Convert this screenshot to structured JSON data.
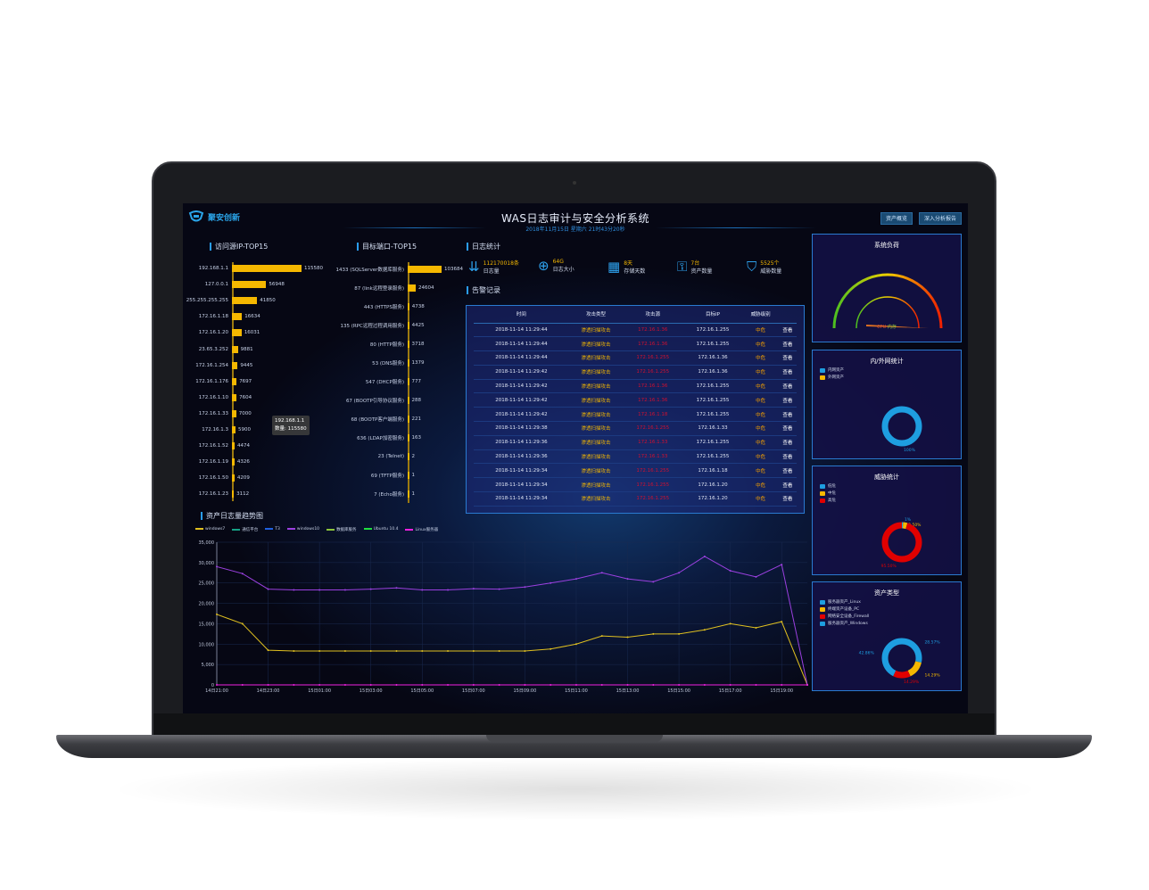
{
  "header": {
    "logo_text": "聚安创新",
    "title": "WAS日志审计与安全分析系统",
    "subtitle": "2018年11月15日 星期六 21时43分20秒",
    "buttons": [
      "资产概览",
      "深入分析报告"
    ]
  },
  "src_ip": {
    "title": "访问源IP-TOP15",
    "items": [
      {
        "label": "192.168.1.1",
        "value": 115580
      },
      {
        "label": "127.0.0.1",
        "value": 56948
      },
      {
        "label": "255.255.255.255",
        "value": 41850
      },
      {
        "label": "172.16.1.18",
        "value": 16634
      },
      {
        "label": "172.16.1.20",
        "value": 16031
      },
      {
        "label": "23.65.3.252",
        "value": 9881
      },
      {
        "label": "172.16.1.254",
        "value": 9445
      },
      {
        "label": "172.16.1.176",
        "value": 7697
      },
      {
        "label": "172.16.1.10",
        "value": 7604
      },
      {
        "label": "172.16.1.33",
        "value": 7000
      },
      {
        "label": "172.16.1.3",
        "value": 5900
      },
      {
        "label": "172.16.1.52",
        "value": 4474
      },
      {
        "label": "172.16.1.19",
        "value": 4326
      },
      {
        "label": "172.16.1.50",
        "value": 4209
      },
      {
        "label": "172.16.1.23",
        "value": 3112
      }
    ],
    "tooltip": {
      "line1": "192.168.1.1",
      "line2": "数量: 115580"
    }
  },
  "dst_port": {
    "title": "目标端口-TOP15",
    "items": [
      {
        "label": "1433 (SQLServer数据库服务)",
        "value": 103684
      },
      {
        "label": "87 (link远程登录服务)",
        "value": 24604
      },
      {
        "label": "443 (HTTPS服务)",
        "value": 4738
      },
      {
        "label": "135 (RPC远程过程调用服务)",
        "value": 4425
      },
      {
        "label": "80 (HTTP服务)",
        "value": 3718
      },
      {
        "label": "53 (DNS服务)",
        "value": 1379
      },
      {
        "label": "547 (DHCP服务)",
        "value": 777
      },
      {
        "label": "67 (BOOTP引导协议服务)",
        "value": 288
      },
      {
        "label": "68 (BOOTP客户端服务)",
        "value": 221
      },
      {
        "label": "636 (LDAP加密服务)",
        "value": 163
      },
      {
        "label": "23 (Telnet)",
        "value": 2
      },
      {
        "label": "69 (TFTP服务)",
        "value": 1
      },
      {
        "label": "7 (Echo服务)",
        "value": 1
      }
    ]
  },
  "log_stats": {
    "title": "日志统计",
    "items": [
      {
        "icon": "bar-sort-icon",
        "value": "112170018条",
        "label": "日志量"
      },
      {
        "icon": "zoom-search-icon",
        "value": "64G",
        "label": "日志大小"
      },
      {
        "icon": "calendar-icon",
        "value": "8天",
        "label": "存储天数"
      },
      {
        "icon": "lock-icon",
        "value": "7台",
        "label": "资产数量"
      },
      {
        "icon": "shield-icon",
        "value": "5525个",
        "label": "威胁数量"
      }
    ]
  },
  "alerts": {
    "title": "告警记录",
    "columns": [
      "时间",
      "攻击类型",
      "攻击源",
      "目标IP",
      "威胁级别",
      ""
    ],
    "rows": [
      [
        "2018-11-14 11:29:44",
        "渗透扫描攻击",
        "172.16.1.36",
        "172.16.1.255",
        "中危",
        "查看"
      ],
      [
        "2018-11-14 11:29:44",
        "渗透扫描攻击",
        "172.16.1.36",
        "172.16.1.255",
        "中危",
        "查看"
      ],
      [
        "2018-11-14 11:29:44",
        "渗透扫描攻击",
        "172.16.1.255",
        "172.16.1.36",
        "中危",
        "查看"
      ],
      [
        "2018-11-14 11:29:42",
        "渗透扫描攻击",
        "172.16.1.255",
        "172.16.1.36",
        "中危",
        "查看"
      ],
      [
        "2018-11-14 11:29:42",
        "渗透扫描攻击",
        "172.16.1.36",
        "172.16.1.255",
        "中危",
        "查看"
      ],
      [
        "2018-11-14 11:29:42",
        "渗透扫描攻击",
        "172.16.1.36",
        "172.16.1.255",
        "中危",
        "查看"
      ],
      [
        "2018-11-14 11:29:42",
        "渗透扫描攻击",
        "172.16.1.18",
        "172.16.1.255",
        "中危",
        "查看"
      ],
      [
        "2018-11-14 11:29:38",
        "渗透扫描攻击",
        "172.16.1.255",
        "172.16.1.33",
        "中危",
        "查看"
      ],
      [
        "2018-11-14 11:29:36",
        "渗透扫描攻击",
        "172.16.1.33",
        "172.16.1.255",
        "中危",
        "查看"
      ],
      [
        "2018-11-14 11:29:36",
        "渗透扫描攻击",
        "172.16.1.33",
        "172.16.1.255",
        "中危",
        "查看"
      ],
      [
        "2018-11-14 11:29:34",
        "渗透扫描攻击",
        "172.16.1.255",
        "172.16.1.18",
        "中危",
        "查看"
      ],
      [
        "2018-11-14 11:29:34",
        "渗透扫描攻击",
        "172.16.1.255",
        "172.16.1.20",
        "中危",
        "查看"
      ],
      [
        "2018-11-14 11:29:34",
        "渗透扫描攻击",
        "172.16.1.255",
        "172.16.1.20",
        "中危",
        "查看"
      ]
    ]
  },
  "chart_data": {
    "type": "line",
    "title": "资产日志量趋势图",
    "x_ticks": [
      "14日21:00",
      "14日23:00",
      "15日01:00",
      "15日03:00",
      "15日05:00",
      "15日07:00",
      "15日09:00",
      "15日11:00",
      "15日13:00",
      "15日15:00",
      "15日17:00",
      "15日19:00"
    ],
    "y_ticks": [
      "0",
      "5,000",
      "10,000",
      "15,000",
      "20,000",
      "25,000",
      "30,000",
      "35,000"
    ],
    "ylim": [
      0,
      35000
    ],
    "grid": true,
    "legend": "top-left",
    "series": [
      {
        "name": "windows7",
        "color": "#e0c020",
        "values": [
          17300,
          15000,
          8500,
          8300,
          8300,
          8300,
          8300,
          8300,
          8300,
          8300,
          8300,
          8300,
          8300,
          8800,
          10000,
          12000,
          11700,
          12500,
          12500,
          13500,
          15000,
          14000,
          15500,
          0
        ]
      },
      {
        "name": "通信平台",
        "color": "#16a085",
        "values": []
      },
      {
        "name": "T3",
        "color": "#2060e0",
        "values": []
      },
      {
        "name": "windows10",
        "color": "#9b40e0",
        "values": [
          29000,
          27300,
          23500,
          23300,
          23300,
          23300,
          23500,
          23800,
          23300,
          23300,
          23600,
          23500,
          24000,
          25000,
          26000,
          27500,
          26000,
          25300,
          27500,
          31500,
          28000,
          26500,
          29500,
          0
        ]
      },
      {
        "name": "数据库服务",
        "color": "#8cc43c",
        "values": []
      },
      {
        "name": "Ubuntu 10.4",
        "color": "#20e040",
        "values": []
      },
      {
        "name": "Linux服务器",
        "color": "#f020e0",
        "values": [
          0,
          0,
          0,
          0,
          0,
          0,
          0,
          0,
          0,
          0,
          0,
          0,
          0,
          0,
          0,
          0,
          0,
          0,
          0,
          0,
          0,
          0,
          0,
          0
        ]
      }
    ]
  },
  "load": {
    "title": "系统负荷",
    "legend": [
      "CPU",
      "内存"
    ]
  },
  "net": {
    "title": "内/外网统计",
    "legend": [
      {
        "label": "内网资产",
        "color": "#1e9ee0"
      },
      {
        "label": "外网资产",
        "color": "#f5b800"
      }
    ],
    "slices": [
      {
        "value": 100,
        "color": "#1e9ee0",
        "label": "100%"
      }
    ]
  },
  "threat": {
    "title": "威胁统计",
    "legend": [
      {
        "label": "低危",
        "color": "#1e9ee0"
      },
      {
        "label": "中危",
        "color": "#f5b800"
      },
      {
        "label": "高危",
        "color": "#e00000"
      }
    ],
    "slices": [
      {
        "value": 1,
        "color": "#1e9ee0",
        "label": "1%"
      },
      {
        "value": 3.5,
        "color": "#f5b800",
        "label": "3.50%"
      },
      {
        "value": 95.5,
        "color": "#e00000",
        "label": "95.50%"
      }
    ]
  },
  "asset": {
    "title": "资产类型",
    "legend": [
      {
        "label": "服务器资产_Linux",
        "color": "#1e9ee0"
      },
      {
        "label": "终端资产设备_PC",
        "color": "#f5b800"
      },
      {
        "label": "网络安全设备_Firewall",
        "color": "#e00000"
      },
      {
        "label": "服务器资产_Windows",
        "color": "#1e9ee0"
      }
    ],
    "slices": [
      {
        "value": 28.57,
        "color": "#1e9ee0",
        "label": "28.57%"
      },
      {
        "value": 14.29,
        "color": "#f5b800",
        "label": "14.29%"
      },
      {
        "value": 14.29,
        "color": "#e00000",
        "label": "14.29%"
      },
      {
        "value": 42.86,
        "color": "#1e9ee0",
        "label": "42.86%"
      }
    ]
  }
}
